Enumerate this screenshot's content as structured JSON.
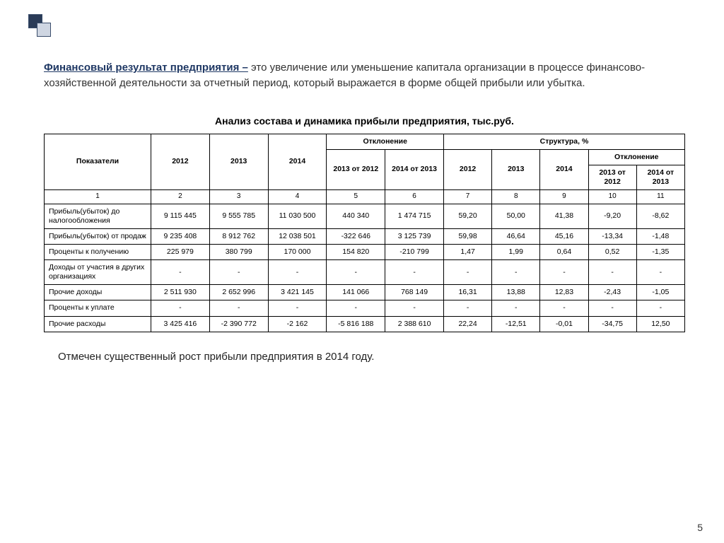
{
  "lead": {
    "title": "Финансовый результат предприятия –",
    "body": " это увеличение или уменьшение капитала организации в процессе финансово-хозяйственной деятельности за отчетный период, который выражается в форме общей прибыли или убытка."
  },
  "table_title": "Анализ состава и динамика прибыли предприятия, тыс.руб.",
  "headers": {
    "indicators": "Показатели",
    "y2012": "2012",
    "y2013": "2013",
    "y2014": "2014",
    "deviation": "Отклонение",
    "structure": "Структура, %",
    "dev_13_12": "2013 от 2012",
    "dev_14_13": "2014 от 2013",
    "str_dev": "Отклонение",
    "str_dev_13_12": "2013 от 2012",
    "str_dev_14_13": "2014 от 2013"
  },
  "numrow": [
    "1",
    "2",
    "3",
    "4",
    "5",
    "6",
    "7",
    "8",
    "9",
    "10",
    "11"
  ],
  "rows": [
    {
      "label": "Прибыль(убыток) до налогообложения",
      "cells": [
        "9 115 445",
        "9 555 785",
        "11 030 500",
        "440 340",
        "1 474 715",
        "59,20",
        "50,00",
        "41,38",
        "-9,20",
        "-8,62"
      ]
    },
    {
      "label": "Прибыль(убыток) от продаж",
      "cells": [
        "9 235 408",
        "8 912 762",
        "12 038 501",
        "-322 646",
        "3 125 739",
        "59,98",
        "46,64",
        "45,16",
        "-13,34",
        "-1,48"
      ]
    },
    {
      "label": "Проценты к получению",
      "cells": [
        "225 979",
        "380 799",
        "170 000",
        "154 820",
        "-210 799",
        "1,47",
        "1,99",
        "0,64",
        "0,52",
        "-1,35"
      ]
    },
    {
      "label": "Доходы от участия в других организациях",
      "cells": [
        "-",
        "-",
        "-",
        "-",
        "-",
        "-",
        "-",
        "-",
        "-",
        "-"
      ]
    },
    {
      "label": "Прочие доходы",
      "cells": [
        "2 511 930",
        "2 652 996",
        "3 421 145",
        "141 066",
        "768 149",
        "16,31",
        "13,88",
        "12,83",
        "-2,43",
        "-1,05"
      ]
    },
    {
      "label": "Проценты к уплате",
      "cells": [
        "-",
        "-",
        "-",
        "-",
        "-",
        "-",
        "-",
        "-",
        "-",
        "-"
      ]
    },
    {
      "label": "Прочие расходы",
      "cells": [
        "3 425 416",
        "-2 390 772",
        "-2 162",
        "-5 816 188",
        "2 388 610",
        "22,24",
        "-12,51",
        "-0,01",
        "-34,75",
        "12,50"
      ]
    }
  ],
  "footer_note": "Отмечен существенный рост прибыли предприятия в 2014 году.",
  "page_number": "5",
  "colors": {
    "title": "#1f3864",
    "square_dark": "#2a3b57",
    "square_light": "#cfd6e2",
    "border": "#000000",
    "text": "#333333"
  },
  "col_widths_pct": [
    15.5,
    8.5,
    8.5,
    8.5,
    8.5,
    8.5,
    7,
    7,
    7,
    7,
    7
  ]
}
